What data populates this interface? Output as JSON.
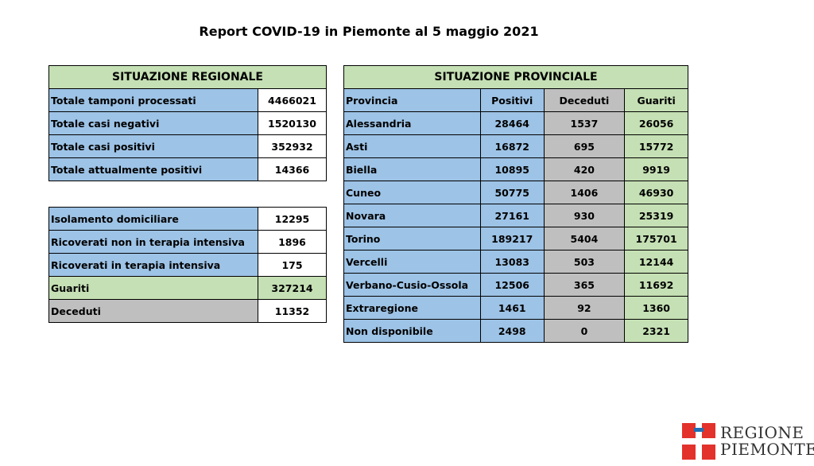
{
  "title": "Report COVID-19 in Piemonte al 5 maggio 2021",
  "regional": {
    "header": "SITUAZIONE REGIONALE",
    "rows": [
      {
        "label": "Totale tamponi processati",
        "value": "4466021"
      },
      {
        "label": "Totale casi negativi",
        "value": "1520130"
      },
      {
        "label": "Totale casi positivi",
        "value": "352932"
      },
      {
        "label": "Totale attualmente positivi",
        "value": "14366"
      }
    ]
  },
  "detail": {
    "rows": [
      {
        "label": "Isolamento domiciliare",
        "value": "12295"
      },
      {
        "label": "Ricoverati non in terapia intensiva",
        "value": "1896"
      },
      {
        "label": "Ricoverati in terapia intensiva",
        "value": "175"
      },
      {
        "label": "Guariti",
        "value": "327214"
      },
      {
        "label": "Deceduti",
        "value": "11352"
      }
    ]
  },
  "provincial": {
    "header": "SITUAZIONE PROVINCIALE",
    "columns": [
      "Provincia",
      "Positivi",
      "Deceduti",
      "Guariti"
    ],
    "rows": [
      {
        "provincia": "Alessandria",
        "positivi": "28464",
        "deceduti": "1537",
        "guariti": "26056"
      },
      {
        "provincia": "Asti",
        "positivi": "16872",
        "deceduti": "695",
        "guariti": "15772"
      },
      {
        "provincia": "Biella",
        "positivi": "10895",
        "deceduti": "420",
        "guariti": "9919"
      },
      {
        "provincia": "Cuneo",
        "positivi": "50775",
        "deceduti": "1406",
        "guariti": "46930"
      },
      {
        "provincia": "Novara",
        "positivi": "27161",
        "deceduti": "930",
        "guariti": "25319"
      },
      {
        "provincia": "Torino",
        "positivi": "189217",
        "deceduti": "5404",
        "guariti": "175701"
      },
      {
        "provincia": "Vercelli",
        "positivi": "13083",
        "deceduti": "503",
        "guariti": "12144"
      },
      {
        "provincia": "Verbano-Cusio-Ossola",
        "positivi": "12506",
        "deceduti": "365",
        "guariti": "11692"
      },
      {
        "provincia": "Extraregione",
        "positivi": "1461",
        "deceduti": "92",
        "guariti": "1360"
      },
      {
        "provincia": "Non disponibile",
        "positivi": "2498",
        "deceduti": "0",
        "guariti": "2321"
      }
    ]
  },
  "logo": {
    "line1": "REGIONE",
    "line2": "PIEMONTE",
    "colors": {
      "red": "#e2322b",
      "blue": "#1f6fb5"
    }
  }
}
